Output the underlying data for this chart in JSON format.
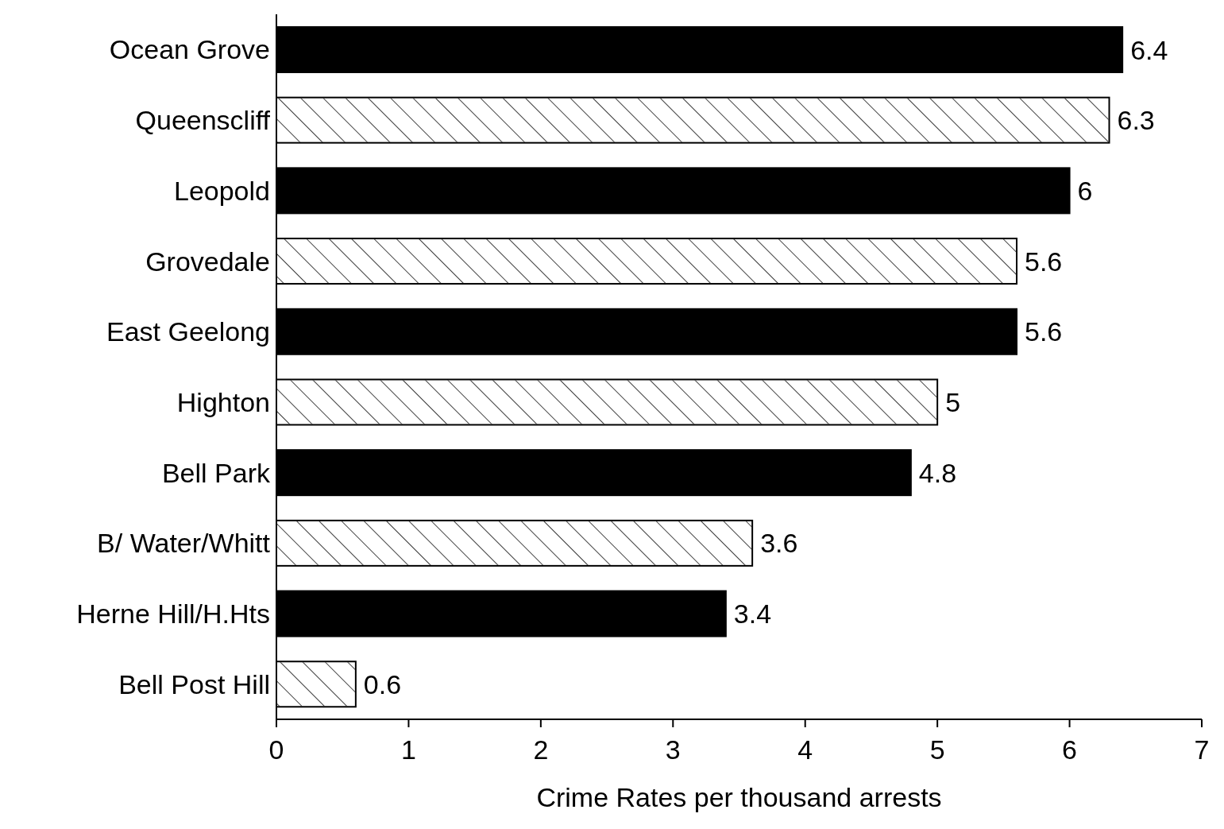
{
  "chart_data": {
    "type": "bar",
    "orientation": "horizontal",
    "xlabel": "Crime Rates per thousand arrests",
    "categories": [
      "Ocean Grove",
      "Queenscliff",
      "Leopold",
      "Grovedale",
      "East Geelong",
      "Highton",
      "Bell Park",
      "B/ Water/Whitt",
      "Herne Hill/H.Hts",
      "Bell Post Hill"
    ],
    "values": [
      6.4,
      6.3,
      6,
      5.6,
      5.6,
      5,
      4.8,
      3.6,
      3.4,
      0.6
    ],
    "colors": [
      "#000000",
      "#ffffff",
      "#000000",
      "#ffffff",
      "#000000",
      "#ffffff",
      "#000000",
      "#ffffff",
      "#000000",
      "#ffffff"
    ],
    "xlim": [
      0,
      7
    ],
    "xticks": [
      0,
      1,
      2,
      3,
      4,
      5,
      6,
      7
    ],
    "data_labels": true,
    "grid": false
  }
}
